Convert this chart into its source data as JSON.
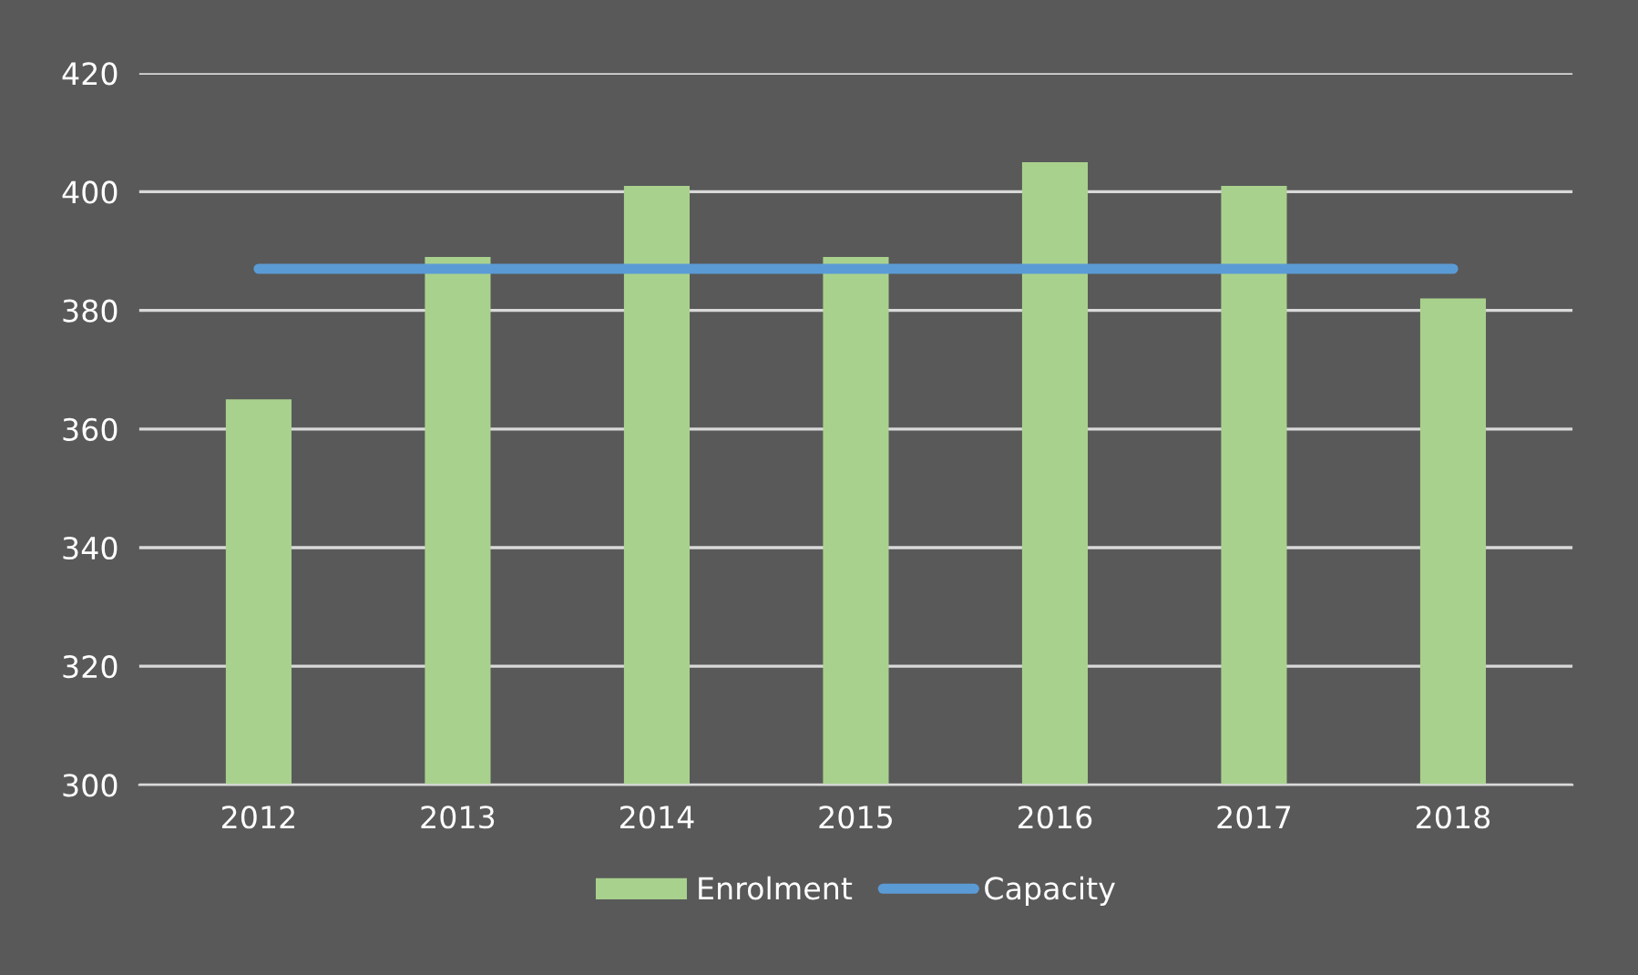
{
  "chart_data": {
    "type": "bar",
    "categories": [
      "2012",
      "2013",
      "2014",
      "2015",
      "2016",
      "2017",
      "2018"
    ],
    "series": [
      {
        "name": "Enrolment",
        "color": "#a9d18e",
        "values": [
          365,
          389,
          401,
          389,
          405,
          401,
          382
        ]
      },
      {
        "name": "Capacity",
        "type": "line",
        "color": "#5b9bd5",
        "values": [
          387,
          387,
          387,
          387,
          387,
          387,
          387
        ]
      }
    ],
    "ylim": [
      300,
      420
    ],
    "yticks": [
      300,
      320,
      340,
      360,
      380,
      400,
      420
    ],
    "grid": "y",
    "legend": "bottom"
  }
}
